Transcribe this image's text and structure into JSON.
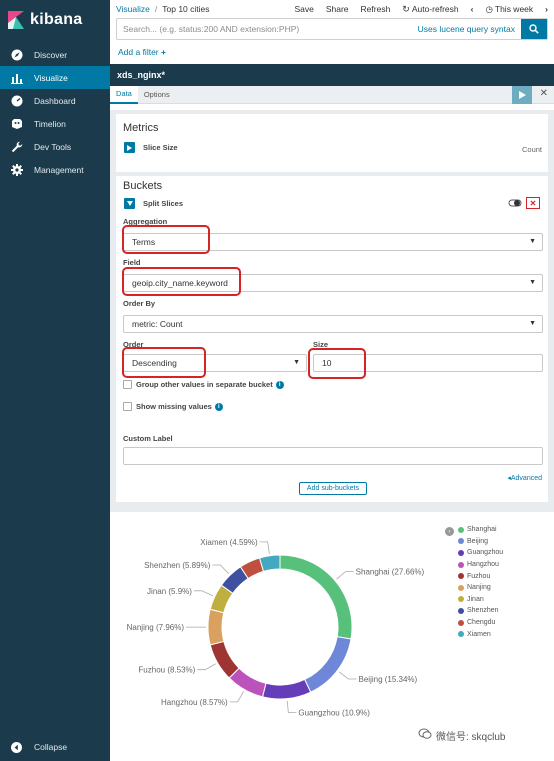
{
  "sidebar": {
    "brand": "kibana",
    "items": [
      {
        "label": "Discover",
        "icon": "compass-icon"
      },
      {
        "label": "Visualize",
        "icon": "bar-chart-icon",
        "active": true
      },
      {
        "label": "Dashboard",
        "icon": "dashboard-icon"
      },
      {
        "label": "Timelion",
        "icon": "timelion-icon"
      },
      {
        "label": "Dev Tools",
        "icon": "wrench-icon"
      },
      {
        "label": "Management",
        "icon": "gear-icon"
      }
    ],
    "collapse_label": "Collapse"
  },
  "topnav": {
    "breadcrumb_root": "Visualize",
    "breadcrumb_sep": "/",
    "breadcrumb_current": "Top 10 cities",
    "save": "Save",
    "share": "Share",
    "refresh": "Refresh",
    "auto_refresh": "Auto-refresh",
    "time_range": "This week"
  },
  "query": {
    "placeholder": "Search... (e.g. status:200 AND extension:PHP)",
    "lucene_link": "Uses lucene query syntax"
  },
  "filter": {
    "add_label": "Add a filter"
  },
  "vis_title": "xds_nginx*",
  "tabs": [
    "Data",
    "Options"
  ],
  "metrics": {
    "title": "Metrics",
    "agg_label": "Slice Size",
    "agg_value": "Count"
  },
  "buckets": {
    "title": "Buckets",
    "agg_label": "Split Slices",
    "aggregation_label": "Aggregation",
    "aggregation_value": "Terms",
    "field_label": "Field",
    "field_value": "geoip.city_name.keyword",
    "order_by_label": "Order By",
    "order_by_value": "metric: Count",
    "order_label": "Order",
    "order_value": "Descending",
    "size_label": "Size",
    "size_value": "10",
    "group_other_label": "Group other values in separate bucket",
    "show_missing_label": "Show missing values",
    "custom_label_label": "Custom Label",
    "custom_label_value": "",
    "advanced_link": "Advanced",
    "add_sub_buckets": "Add sub-buckets"
  },
  "colors": {
    "sidebar_bg": "#1b3a4b",
    "accent": "#0079a5",
    "highlight_box": "#d42424"
  },
  "chart_data": {
    "type": "pie",
    "donut": true,
    "categories": [
      "Shanghai",
      "Beijing",
      "Guangzhou",
      "Hangzhou",
      "Fuzhou",
      "Nanjing",
      "Jinan",
      "Shenzhen",
      "Chengdu",
      "Xiamen"
    ],
    "values": [
      27.66,
      15.34,
      10.9,
      8.57,
      8.53,
      7.96,
      5.9,
      5.89,
      4.66,
      4.59
    ],
    "labels": [
      "Shanghai (27.66%)",
      "Beijing (15.34%)",
      "Guangzhou (10.9%)",
      "Hangzhou (8.57%)",
      "Fuzhou (8.53%)",
      "Nanjing (7.96%)",
      "Jinan (5.9%)",
      "Shenzhen (5.89%)",
      "",
      "Xiamen (4.59%)"
    ],
    "colors": [
      "#57c17b",
      "#6f87d8",
      "#663db8",
      "#bc52bc",
      "#9e3533",
      "#daa05d",
      "#bfaf40",
      "#4050a0",
      "#bf5040",
      "#44a8c0"
    ],
    "legend": [
      "Shanghai",
      "Beijing",
      "Guangzhou",
      "Hangzhou",
      "Fuzhou",
      "Nanjing",
      "Jinan",
      "Shenzhen",
      "Chengdu",
      "Xiamen"
    ],
    "legend_position": "right"
  },
  "watermark": "微信号: skqclub"
}
